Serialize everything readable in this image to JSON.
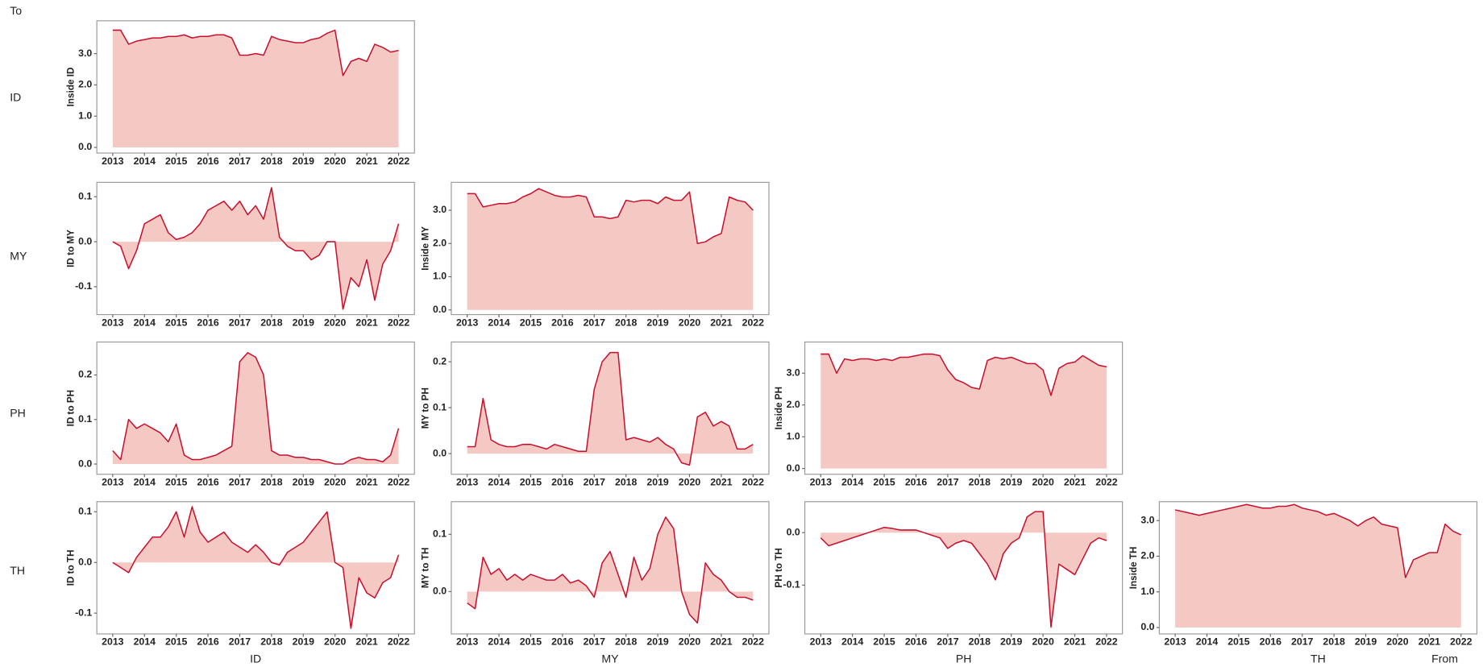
{
  "axis_titles": {
    "to": "To",
    "from": "From",
    "rows": [
      "ID",
      "MY",
      "PH",
      "TH"
    ],
    "columns": [
      "ID",
      "MY",
      "PH",
      "TH"
    ]
  },
  "chart_data": [
    {
      "type": "area",
      "ylabel": "Inside ID",
      "color": "#c8102e",
      "fill": "#f4c9c3",
      "x": [
        2013,
        2013.25,
        2013.5,
        2013.75,
        2014,
        2014.25,
        2014.5,
        2014.75,
        2015,
        2015.25,
        2015.5,
        2015.75,
        2016,
        2016.25,
        2016.5,
        2016.75,
        2017,
        2017.25,
        2017.5,
        2017.75,
        2018,
        2018.25,
        2018.5,
        2018.75,
        2019,
        2019.25,
        2019.5,
        2019.75,
        2020,
        2020.25,
        2020.5,
        2020.75,
        2021,
        2021.25,
        2021.5,
        2021.75,
        2022
      ],
      "values": [
        3.75,
        3.75,
        3.3,
        3.4,
        3.45,
        3.5,
        3.5,
        3.55,
        3.55,
        3.6,
        3.5,
        3.55,
        3.55,
        3.6,
        3.6,
        3.5,
        2.95,
        2.95,
        3.0,
        2.95,
        3.55,
        3.45,
        3.4,
        3.35,
        3.35,
        3.45,
        3.5,
        3.65,
        3.75,
        2.3,
        2.75,
        2.85,
        2.75,
        3.3,
        3.2,
        3.05,
        3.1
      ],
      "xlim": [
        2012.5,
        2022.5
      ],
      "xticks": [
        2013,
        2014,
        2015,
        2016,
        2017,
        2018,
        2019,
        2020,
        2021,
        2022
      ],
      "ylim": [
        -0.18,
        4.05
      ],
      "yticks": [
        {
          "value": 0,
          "label": "0.0"
        },
        {
          "value": 1,
          "label": "1.0"
        },
        {
          "value": 2,
          "label": "2.0"
        },
        {
          "value": 3,
          "label": "3.0"
        }
      ]
    },
    {
      "type": "area",
      "ylabel": "ID to MY",
      "color": "#c8102e",
      "fill": "#f4c9c3",
      "x": [
        2013,
        2013.25,
        2013.5,
        2013.75,
        2014,
        2014.25,
        2014.5,
        2014.75,
        2015,
        2015.25,
        2015.5,
        2015.75,
        2016,
        2016.25,
        2016.5,
        2016.75,
        2017,
        2017.25,
        2017.5,
        2017.75,
        2018,
        2018.25,
        2018.5,
        2018.75,
        2019,
        2019.25,
        2019.5,
        2019.75,
        2020,
        2020.25,
        2020.5,
        2020.75,
        2021,
        2021.25,
        2021.5,
        2021.75,
        2022
      ],
      "values": [
        0,
        -0.01,
        -0.06,
        -0.02,
        0.04,
        0.05,
        0.06,
        0.02,
        0.005,
        0.01,
        0.02,
        0.04,
        0.07,
        0.08,
        0.09,
        0.07,
        0.09,
        0.06,
        0.08,
        0.05,
        0.12,
        0.01,
        -0.01,
        -0.02,
        -0.02,
        -0.04,
        -0.03,
        0,
        0,
        -0.15,
        -0.08,
        -0.1,
        -0.04,
        -0.13,
        -0.05,
        -0.02,
        0.04
      ],
      "xlim": [
        2012.5,
        2022.5
      ],
      "xticks": [
        2013,
        2014,
        2015,
        2016,
        2017,
        2018,
        2019,
        2020,
        2021,
        2022
      ],
      "ylim": [
        -0.162,
        0.132
      ],
      "yticks": [
        -0.1,
        {
          "value": 0,
          "label": "0.0"
        },
        0.1
      ]
    },
    {
      "type": "area",
      "ylabel": "Inside MY",
      "color": "#c8102e",
      "fill": "#f4c9c3",
      "x": [
        2013,
        2013.25,
        2013.5,
        2013.75,
        2014,
        2014.25,
        2014.5,
        2014.75,
        2015,
        2015.25,
        2015.5,
        2015.75,
        2016,
        2016.25,
        2016.5,
        2016.75,
        2017,
        2017.25,
        2017.5,
        2017.75,
        2018,
        2018.25,
        2018.5,
        2018.75,
        2019,
        2019.25,
        2019.5,
        2019.75,
        2020,
        2020.25,
        2020.5,
        2020.75,
        2021,
        2021.25,
        2021.5,
        2021.75,
        2022
      ],
      "values": [
        3.5,
        3.5,
        3.1,
        3.15,
        3.2,
        3.2,
        3.25,
        3.4,
        3.5,
        3.65,
        3.55,
        3.45,
        3.4,
        3.4,
        3.45,
        3.4,
        2.8,
        2.8,
        2.75,
        2.8,
        3.3,
        3.25,
        3.3,
        3.3,
        3.2,
        3.4,
        3.3,
        3.3,
        3.55,
        2.0,
        2.05,
        2.2,
        2.3,
        3.4,
        3.3,
        3.25,
        3.0
      ],
      "xlim": [
        2012.5,
        2022.5
      ],
      "xticks": [
        2013,
        2014,
        2015,
        2016,
        2017,
        2018,
        2019,
        2020,
        2021,
        2022
      ],
      "ylim": [
        -0.14,
        3.84
      ],
      "yticks": [
        {
          "value": 0,
          "label": "0.0"
        },
        {
          "value": 1,
          "label": "1.0"
        },
        {
          "value": 2,
          "label": "2.0"
        },
        {
          "value": 3,
          "label": "3.0"
        }
      ]
    },
    {
      "type": "area",
      "ylabel": "ID to PH",
      "color": "#c8102e",
      "fill": "#f4c9c3",
      "x": [
        2013,
        2013.25,
        2013.5,
        2013.75,
        2014,
        2014.25,
        2014.5,
        2014.75,
        2015,
        2015.25,
        2015.5,
        2015.75,
        2016,
        2016.25,
        2016.5,
        2016.75,
        2017,
        2017.25,
        2017.5,
        2017.75,
        2018,
        2018.25,
        2018.5,
        2018.75,
        2019,
        2019.25,
        2019.5,
        2019.75,
        2020,
        2020.25,
        2020.5,
        2020.75,
        2021,
        2021.25,
        2021.5,
        2021.75,
        2022
      ],
      "values": [
        0.03,
        0.01,
        0.1,
        0.08,
        0.09,
        0.08,
        0.07,
        0.05,
        0.09,
        0.02,
        0.01,
        0.01,
        0.015,
        0.02,
        0.03,
        0.04,
        0.23,
        0.25,
        0.24,
        0.2,
        0.03,
        0.02,
        0.02,
        0.015,
        0.015,
        0.01,
        0.01,
        0.005,
        0,
        0,
        0.01,
        0.015,
        0.01,
        0.01,
        0.005,
        0.02,
        0.08
      ],
      "xlim": [
        2012.5,
        2022.5
      ],
      "xticks": [
        2013,
        2014,
        2015,
        2016,
        2017,
        2018,
        2019,
        2020,
        2021,
        2022
      ],
      "ylim": [
        -0.023,
        0.274
      ],
      "yticks": [
        {
          "value": 0,
          "label": "0.0"
        },
        0.1,
        0.2
      ]
    },
    {
      "type": "area",
      "ylabel": "MY to PH",
      "color": "#c8102e",
      "fill": "#f4c9c3",
      "x": [
        2013,
        2013.25,
        2013.5,
        2013.75,
        2014,
        2014.25,
        2014.5,
        2014.75,
        2015,
        2015.25,
        2015.5,
        2015.75,
        2016,
        2016.25,
        2016.5,
        2016.75,
        2017,
        2017.25,
        2017.5,
        2017.75,
        2018,
        2018.25,
        2018.5,
        2018.75,
        2019,
        2019.25,
        2019.5,
        2019.75,
        2020,
        2020.25,
        2020.5,
        2020.75,
        2021,
        2021.25,
        2021.5,
        2021.75,
        2022
      ],
      "values": [
        0.015,
        0.015,
        0.12,
        0.03,
        0.02,
        0.015,
        0.015,
        0.02,
        0.02,
        0.015,
        0.01,
        0.02,
        0.015,
        0.01,
        0.005,
        0.005,
        0.14,
        0.2,
        0.22,
        0.22,
        0.03,
        0.035,
        0.03,
        0.025,
        0.035,
        0.02,
        0.01,
        -0.02,
        -0.025,
        0.08,
        0.09,
        0.06,
        0.07,
        0.06,
        0.01,
        0.01,
        0.02
      ],
      "xlim": [
        2012.5,
        2022.5
      ],
      "xticks": [
        2013,
        2014,
        2015,
        2016,
        2017,
        2018,
        2019,
        2020,
        2021,
        2022
      ],
      "ylim": [
        -0.045,
        0.243
      ],
      "yticks": [
        {
          "value": 0,
          "label": "0.0"
        },
        0.1,
        0.2
      ]
    },
    {
      "type": "area",
      "ylabel": "Inside PH",
      "color": "#c8102e",
      "fill": "#f4c9c3",
      "x": [
        2013,
        2013.25,
        2013.5,
        2013.75,
        2014,
        2014.25,
        2014.5,
        2014.75,
        2015,
        2015.25,
        2015.5,
        2015.75,
        2016,
        2016.25,
        2016.5,
        2016.75,
        2017,
        2017.25,
        2017.5,
        2017.75,
        2018,
        2018.25,
        2018.5,
        2018.75,
        2019,
        2019.25,
        2019.5,
        2019.75,
        2020,
        2020.25,
        2020.5,
        2020.75,
        2021,
        2021.25,
        2021.5,
        2021.75,
        2022
      ],
      "values": [
        3.6,
        3.6,
        3.0,
        3.45,
        3.4,
        3.45,
        3.45,
        3.4,
        3.45,
        3.4,
        3.5,
        3.5,
        3.55,
        3.6,
        3.6,
        3.55,
        3.1,
        2.8,
        2.7,
        2.55,
        2.5,
        3.4,
        3.5,
        3.45,
        3.5,
        3.4,
        3.3,
        3.3,
        3.1,
        2.3,
        3.15,
        3.3,
        3.35,
        3.55,
        3.4,
        3.25,
        3.2
      ],
      "xlim": [
        2012.5,
        2022.5
      ],
      "xticks": [
        2013,
        2014,
        2015,
        2016,
        2017,
        2018,
        2019,
        2020,
        2021,
        2022
      ],
      "ylim": [
        -0.18,
        3.98
      ],
      "yticks": [
        {
          "value": 0,
          "label": "0.0"
        },
        {
          "value": 1,
          "label": "1.0"
        },
        {
          "value": 2,
          "label": "2.0"
        },
        {
          "value": 3,
          "label": "3.0"
        }
      ]
    },
    {
      "type": "area",
      "ylabel": "ID to TH",
      "color": "#c8102e",
      "fill": "#f4c9c3",
      "x": [
        2013,
        2013.25,
        2013.5,
        2013.75,
        2014,
        2014.25,
        2014.5,
        2014.75,
        2015,
        2015.25,
        2015.5,
        2015.75,
        2016,
        2016.25,
        2016.5,
        2016.75,
        2017,
        2017.25,
        2017.5,
        2017.75,
        2018,
        2018.25,
        2018.5,
        2018.75,
        2019,
        2019.25,
        2019.5,
        2019.75,
        2020,
        2020.25,
        2020.5,
        2020.75,
        2021,
        2021.25,
        2021.5,
        2021.75,
        2022
      ],
      "values": [
        0,
        -0.01,
        -0.02,
        0.01,
        0.03,
        0.05,
        0.05,
        0.07,
        0.1,
        0.05,
        0.11,
        0.06,
        0.04,
        0.05,
        0.06,
        0.04,
        0.03,
        0.02,
        0.035,
        0.02,
        0,
        -0.005,
        0.02,
        0.03,
        0.04,
        0.06,
        0.08,
        0.1,
        0,
        -0.01,
        -0.13,
        -0.03,
        -0.06,
        -0.07,
        -0.04,
        -0.03,
        0.015
      ],
      "xlim": [
        2012.5,
        2022.5
      ],
      "xticks": [
        2013,
        2014,
        2015,
        2016,
        2017,
        2018,
        2019,
        2020,
        2021,
        2022
      ],
      "ylim": [
        -0.141,
        0.12
      ],
      "yticks": [
        -0.1,
        {
          "value": 0,
          "label": "0.0"
        },
        0.1
      ]
    },
    {
      "type": "area",
      "ylabel": "MY to TH",
      "color": "#c8102e",
      "fill": "#f4c9c3",
      "x": [
        2013,
        2013.25,
        2013.5,
        2013.75,
        2014,
        2014.25,
        2014.5,
        2014.75,
        2015,
        2015.25,
        2015.5,
        2015.75,
        2016,
        2016.25,
        2016.5,
        2016.75,
        2017,
        2017.25,
        2017.5,
        2017.75,
        2018,
        2018.25,
        2018.5,
        2018.75,
        2019,
        2019.25,
        2019.5,
        2019.75,
        2020,
        2020.25,
        2020.5,
        2020.75,
        2021,
        2021.25,
        2021.5,
        2021.75,
        2022
      ],
      "values": [
        -0.02,
        -0.03,
        0.06,
        0.03,
        0.04,
        0.02,
        0.03,
        0.02,
        0.03,
        0.025,
        0.02,
        0.02,
        0.03,
        0.015,
        0.02,
        0.01,
        -0.01,
        0.05,
        0.07,
        0.03,
        -0.01,
        0.06,
        0.02,
        0.04,
        0.1,
        0.13,
        0.11,
        0,
        -0.04,
        -0.055,
        0.05,
        0.03,
        0.02,
        0,
        -0.01,
        -0.01,
        -0.015
      ],
      "xlim": [
        2012.5,
        2022.5
      ],
      "xticks": [
        2013,
        2014,
        2015,
        2016,
        2017,
        2018,
        2019,
        2020,
        2021,
        2022
      ],
      "ylim": [
        -0.074,
        0.157
      ],
      "yticks": [
        {
          "value": 0,
          "label": "0.0"
        },
        0.1
      ]
    },
    {
      "type": "area",
      "ylabel": "PH to TH",
      "color": "#c8102e",
      "fill": "#f4c9c3",
      "x": [
        2013,
        2013.25,
        2013.5,
        2013.75,
        2014,
        2014.25,
        2014.5,
        2014.75,
        2015,
        2015.25,
        2015.5,
        2015.75,
        2016,
        2016.25,
        2016.5,
        2016.75,
        2017,
        2017.25,
        2017.5,
        2017.75,
        2018,
        2018.25,
        2018.5,
        2018.75,
        2019,
        2019.25,
        2019.5,
        2019.75,
        2020,
        2020.25,
        2020.5,
        2020.75,
        2021,
        2021.25,
        2021.5,
        2021.75,
        2022
      ],
      "values": [
        -0.01,
        -0.025,
        -0.02,
        -0.015,
        -0.01,
        -0.005,
        0,
        0.005,
        0.01,
        0.008,
        0.005,
        0.005,
        0.005,
        0,
        -0.005,
        -0.01,
        -0.03,
        -0.02,
        -0.015,
        -0.02,
        -0.04,
        -0.06,
        -0.09,
        -0.04,
        -0.02,
        -0.01,
        0.03,
        0.04,
        0.04,
        -0.18,
        -0.06,
        -0.07,
        -0.08,
        -0.05,
        -0.02,
        -0.01,
        -0.015
      ],
      "xlim": [
        2012.5,
        2022.5
      ],
      "xticks": [
        2013,
        2014,
        2015,
        2016,
        2017,
        2018,
        2019,
        2020,
        2021,
        2022
      ],
      "ylim": [
        -0.193,
        0.059
      ],
      "yticks": [
        -0.1,
        {
          "value": 0,
          "label": "0.0"
        }
      ]
    },
    {
      "type": "area",
      "ylabel": "Inside TH",
      "color": "#c8102e",
      "fill": "#f4c9c3",
      "x": [
        2013,
        2013.25,
        2013.5,
        2013.75,
        2014,
        2014.25,
        2014.5,
        2014.75,
        2015,
        2015.25,
        2015.5,
        2015.75,
        2016,
        2016.25,
        2016.5,
        2016.75,
        2017,
        2017.25,
        2017.5,
        2017.75,
        2018,
        2018.25,
        2018.5,
        2018.75,
        2019,
        2019.25,
        2019.5,
        2019.75,
        2020,
        2020.25,
        2020.5,
        2020.75,
        2021,
        2021.25,
        2021.5,
        2021.75,
        2022
      ],
      "values": [
        3.3,
        3.25,
        3.2,
        3.15,
        3.2,
        3.25,
        3.3,
        3.35,
        3.4,
        3.45,
        3.4,
        3.35,
        3.35,
        3.4,
        3.4,
        3.45,
        3.35,
        3.3,
        3.25,
        3.15,
        3.2,
        3.1,
        3.0,
        2.85,
        3.0,
        3.1,
        2.9,
        2.85,
        2.8,
        1.4,
        1.9,
        2.0,
        2.1,
        2.1,
        2.9,
        2.7,
        2.6
      ],
      "xlim": [
        2012.5,
        2022.5
      ],
      "xticks": [
        2013,
        2014,
        2015,
        2016,
        2017,
        2018,
        2019,
        2020,
        2021,
        2022
      ],
      "ylim": [
        -0.18,
        3.53
      ],
      "yticks": [
        {
          "value": 0,
          "label": "0.0"
        },
        {
          "value": 1,
          "label": "1.0"
        },
        {
          "value": 2,
          "label": "2.0"
        },
        {
          "value": 3,
          "label": "3.0"
        }
      ]
    }
  ]
}
